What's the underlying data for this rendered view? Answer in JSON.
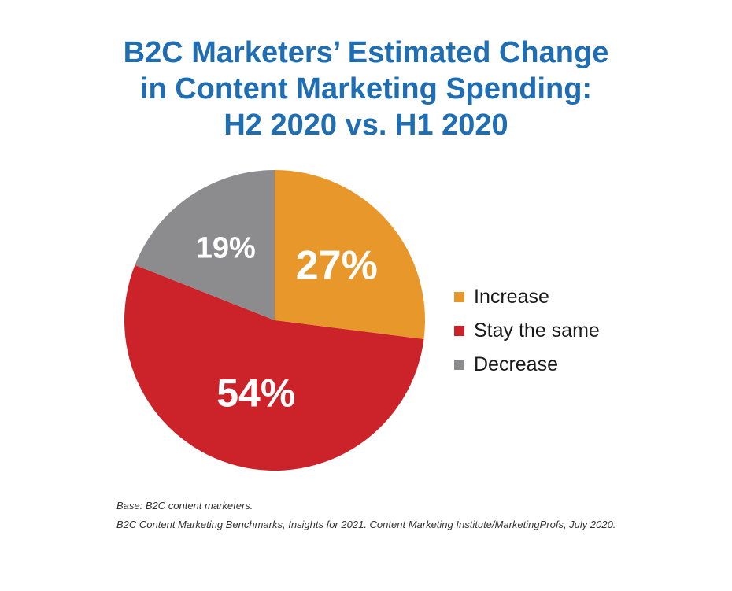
{
  "title": {
    "line1": "B2C Marketers’ Estimated Change",
    "line2": "in Content Marketing Spending:",
    "line3": "H2 2020 vs. H1 2020"
  },
  "chart_data": {
    "type": "pie",
    "title": "B2C Marketers’ Estimated Change in Content Marketing Spending: H2 2020 vs. H1 2020",
    "unit": "%",
    "legend_position": "right",
    "slices": [
      {
        "label": "Increase",
        "value": 27,
        "display": "27%",
        "color": "#e8972a"
      },
      {
        "label": "Stay the same",
        "value": 54,
        "display": "54%",
        "color": "#cc2229"
      },
      {
        "label": "Decrease",
        "value": 19,
        "display": "19%",
        "color": "#8c8c8e"
      }
    ]
  },
  "footnote": {
    "base": "Base: B2C content marketers.",
    "source": "B2C Content Marketing Benchmarks, Insights for 2021. Content Marketing Institute/MarketingProfs, July 2020."
  }
}
